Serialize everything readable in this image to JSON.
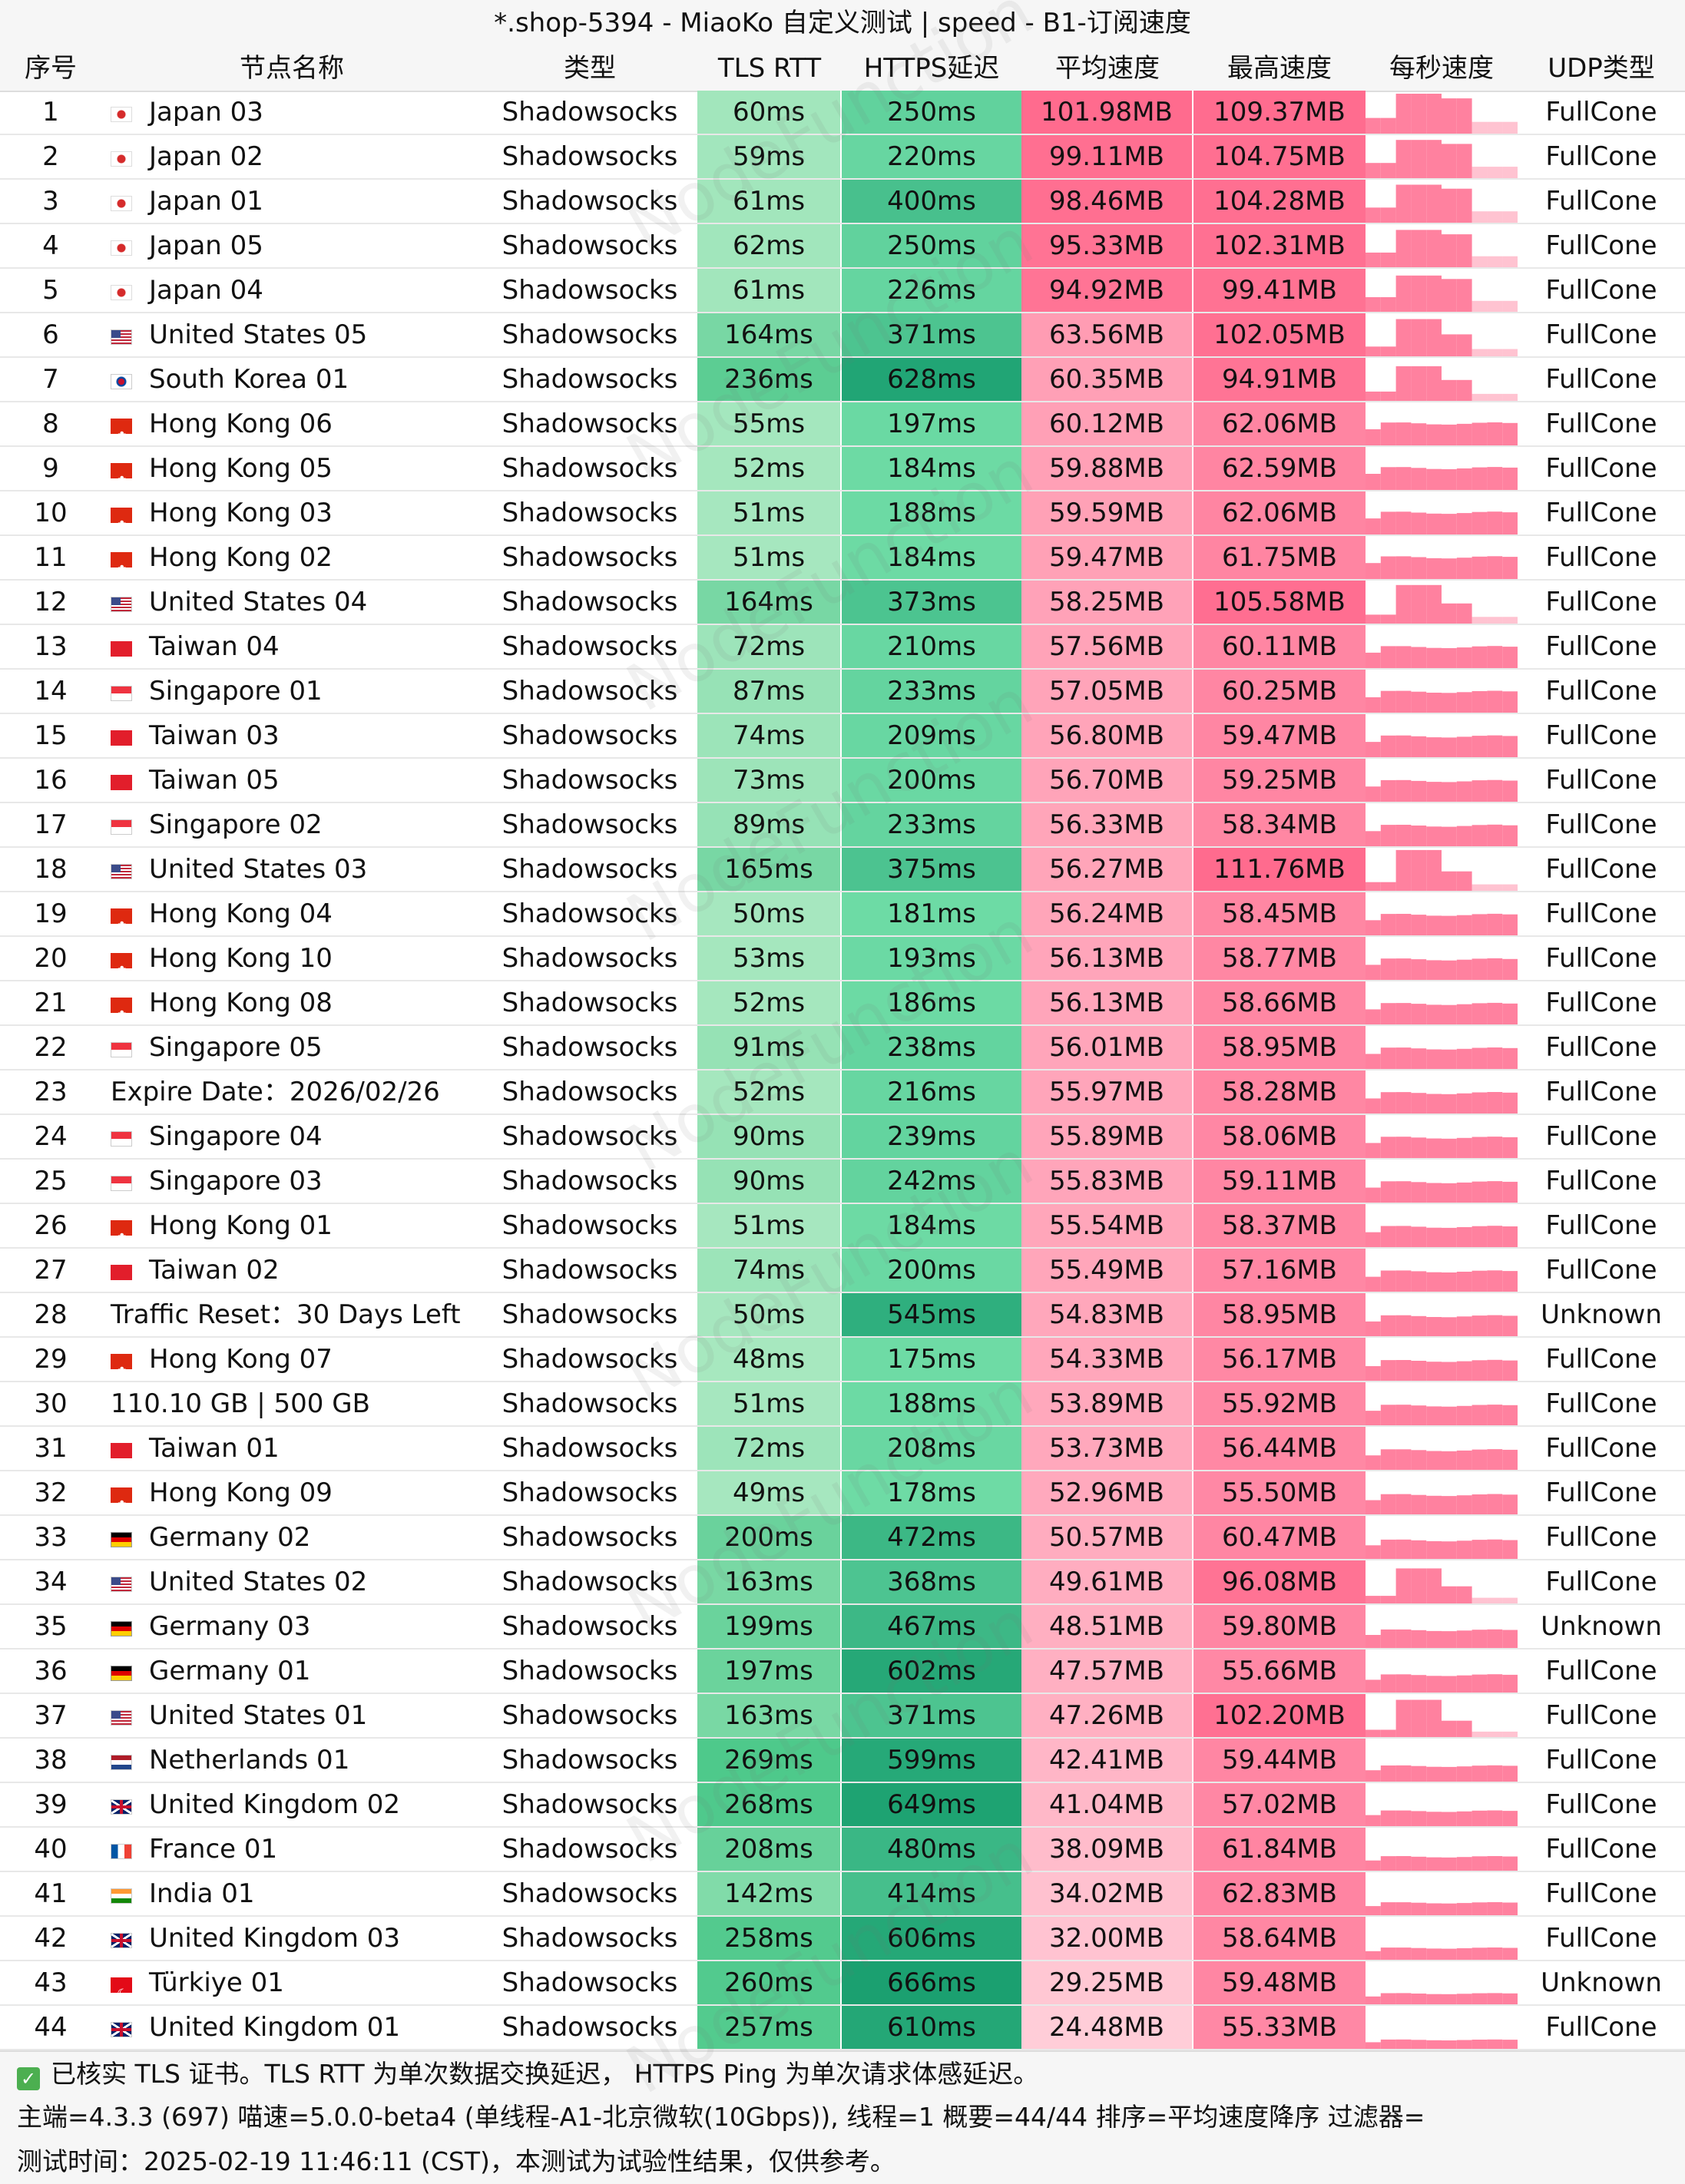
{
  "title": "*.shop-5394 - MiaoKo 自定义测试 | speed - B1-订阅速度",
  "watermark": "NodeFunction",
  "headers": [
    "序号",
    "节点名称",
    "类型",
    "TLS RTT",
    "HTTPS延迟",
    "平均速度",
    "最高速度",
    "每秒速度",
    "UDP类型"
  ],
  "rows": [
    {
      "id": "1",
      "flag": "jp",
      "name": "Japan 03",
      "type": "Shadowsocks",
      "tls": "60ms",
      "https": "250ms",
      "avg": "101.98MB",
      "max": "109.37MB",
      "udp": "FullCone"
    },
    {
      "id": "2",
      "flag": "jp",
      "name": "Japan 02",
      "type": "Shadowsocks",
      "tls": "59ms",
      "https": "220ms",
      "avg": "99.11MB",
      "max": "104.75MB",
      "udp": "FullCone"
    },
    {
      "id": "3",
      "flag": "jp",
      "name": "Japan 01",
      "type": "Shadowsocks",
      "tls": "61ms",
      "https": "400ms",
      "avg": "98.46MB",
      "max": "104.28MB",
      "udp": "FullCone"
    },
    {
      "id": "4",
      "flag": "jp",
      "name": "Japan 05",
      "type": "Shadowsocks",
      "tls": "62ms",
      "https": "250ms",
      "avg": "95.33MB",
      "max": "102.31MB",
      "udp": "FullCone"
    },
    {
      "id": "5",
      "flag": "jp",
      "name": "Japan 04",
      "type": "Shadowsocks",
      "tls": "61ms",
      "https": "226ms",
      "avg": "94.92MB",
      "max": "99.41MB",
      "udp": "FullCone"
    },
    {
      "id": "6",
      "flag": "us",
      "name": "United States 05",
      "type": "Shadowsocks",
      "tls": "164ms",
      "https": "371ms",
      "avg": "63.56MB",
      "max": "102.05MB",
      "udp": "FullCone"
    },
    {
      "id": "7",
      "flag": "kr",
      "name": "South Korea 01",
      "type": "Shadowsocks",
      "tls": "236ms",
      "https": "628ms",
      "avg": "60.35MB",
      "max": "94.91MB",
      "udp": "FullCone"
    },
    {
      "id": "8",
      "flag": "hk",
      "name": "Hong Kong 06",
      "type": "Shadowsocks",
      "tls": "55ms",
      "https": "197ms",
      "avg": "60.12MB",
      "max": "62.06MB",
      "udp": "FullCone"
    },
    {
      "id": "9",
      "flag": "hk",
      "name": "Hong Kong 05",
      "type": "Shadowsocks",
      "tls": "52ms",
      "https": "184ms",
      "avg": "59.88MB",
      "max": "62.59MB",
      "udp": "FullCone"
    },
    {
      "id": "10",
      "flag": "hk",
      "name": "Hong Kong 03",
      "type": "Shadowsocks",
      "tls": "51ms",
      "https": "188ms",
      "avg": "59.59MB",
      "max": "62.06MB",
      "udp": "FullCone"
    },
    {
      "id": "11",
      "flag": "hk",
      "name": "Hong Kong 02",
      "type": "Shadowsocks",
      "tls": "51ms",
      "https": "184ms",
      "avg": "59.47MB",
      "max": "61.75MB",
      "udp": "FullCone"
    },
    {
      "id": "12",
      "flag": "us",
      "name": "United States 04",
      "type": "Shadowsocks",
      "tls": "164ms",
      "https": "373ms",
      "avg": "58.25MB",
      "max": "105.58MB",
      "udp": "FullCone"
    },
    {
      "id": "13",
      "flag": "tw",
      "name": "Taiwan 04",
      "type": "Shadowsocks",
      "tls": "72ms",
      "https": "210ms",
      "avg": "57.56MB",
      "max": "60.11MB",
      "udp": "FullCone"
    },
    {
      "id": "14",
      "flag": "sg",
      "name": "Singapore 01",
      "type": "Shadowsocks",
      "tls": "87ms",
      "https": "233ms",
      "avg": "57.05MB",
      "max": "60.25MB",
      "udp": "FullCone"
    },
    {
      "id": "15",
      "flag": "tw",
      "name": "Taiwan 03",
      "type": "Shadowsocks",
      "tls": "74ms",
      "https": "209ms",
      "avg": "56.80MB",
      "max": "59.47MB",
      "udp": "FullCone"
    },
    {
      "id": "16",
      "flag": "tw",
      "name": "Taiwan 05",
      "type": "Shadowsocks",
      "tls": "73ms",
      "https": "200ms",
      "avg": "56.70MB",
      "max": "59.25MB",
      "udp": "FullCone"
    },
    {
      "id": "17",
      "flag": "sg",
      "name": "Singapore 02",
      "type": "Shadowsocks",
      "tls": "89ms",
      "https": "233ms",
      "avg": "56.33MB",
      "max": "58.34MB",
      "udp": "FullCone"
    },
    {
      "id": "18",
      "flag": "us",
      "name": "United States 03",
      "type": "Shadowsocks",
      "tls": "165ms",
      "https": "375ms",
      "avg": "56.27MB",
      "max": "111.76MB",
      "udp": "FullCone"
    },
    {
      "id": "19",
      "flag": "hk",
      "name": "Hong Kong 04",
      "type": "Shadowsocks",
      "tls": "50ms",
      "https": "181ms",
      "avg": "56.24MB",
      "max": "58.45MB",
      "udp": "FullCone"
    },
    {
      "id": "20",
      "flag": "hk",
      "name": "Hong Kong 10",
      "type": "Shadowsocks",
      "tls": "53ms",
      "https": "193ms",
      "avg": "56.13MB",
      "max": "58.77MB",
      "udp": "FullCone"
    },
    {
      "id": "21",
      "flag": "hk",
      "name": "Hong Kong 08",
      "type": "Shadowsocks",
      "tls": "52ms",
      "https": "186ms",
      "avg": "56.13MB",
      "max": "58.66MB",
      "udp": "FullCone"
    },
    {
      "id": "22",
      "flag": "sg",
      "name": "Singapore 05",
      "type": "Shadowsocks",
      "tls": "91ms",
      "https": "238ms",
      "avg": "56.01MB",
      "max": "58.95MB",
      "udp": "FullCone"
    },
    {
      "id": "23",
      "flag": "",
      "name": "Expire Date：2026/02/26",
      "type": "Shadowsocks",
      "tls": "52ms",
      "https": "216ms",
      "avg": "55.97MB",
      "max": "58.28MB",
      "udp": "FullCone"
    },
    {
      "id": "24",
      "flag": "sg",
      "name": "Singapore 04",
      "type": "Shadowsocks",
      "tls": "90ms",
      "https": "239ms",
      "avg": "55.89MB",
      "max": "58.06MB",
      "udp": "FullCone"
    },
    {
      "id": "25",
      "flag": "sg",
      "name": "Singapore 03",
      "type": "Shadowsocks",
      "tls": "90ms",
      "https": "242ms",
      "avg": "55.83MB",
      "max": "59.11MB",
      "udp": "FullCone"
    },
    {
      "id": "26",
      "flag": "hk",
      "name": "Hong Kong 01",
      "type": "Shadowsocks",
      "tls": "51ms",
      "https": "184ms",
      "avg": "55.54MB",
      "max": "58.37MB",
      "udp": "FullCone"
    },
    {
      "id": "27",
      "flag": "tw",
      "name": "Taiwan 02",
      "type": "Shadowsocks",
      "tls": "74ms",
      "https": "200ms",
      "avg": "55.49MB",
      "max": "57.16MB",
      "udp": "FullCone"
    },
    {
      "id": "28",
      "flag": "",
      "name": "Traffic Reset：30 Days Left",
      "type": "Shadowsocks",
      "tls": "50ms",
      "https": "545ms",
      "avg": "54.83MB",
      "max": "58.95MB",
      "udp": "Unknown"
    },
    {
      "id": "29",
      "flag": "hk",
      "name": "Hong Kong 07",
      "type": "Shadowsocks",
      "tls": "48ms",
      "https": "175ms",
      "avg": "54.33MB",
      "max": "56.17MB",
      "udp": "FullCone"
    },
    {
      "id": "30",
      "flag": "",
      "name": "110.10 GB | 500 GB",
      "type": "Shadowsocks",
      "tls": "51ms",
      "https": "188ms",
      "avg": "53.89MB",
      "max": "55.92MB",
      "udp": "FullCone"
    },
    {
      "id": "31",
      "flag": "tw",
      "name": "Taiwan 01",
      "type": "Shadowsocks",
      "tls": "72ms",
      "https": "208ms",
      "avg": "53.73MB",
      "max": "56.44MB",
      "udp": "FullCone"
    },
    {
      "id": "32",
      "flag": "hk",
      "name": "Hong Kong 09",
      "type": "Shadowsocks",
      "tls": "49ms",
      "https": "178ms",
      "avg": "52.96MB",
      "max": "55.50MB",
      "udp": "FullCone"
    },
    {
      "id": "33",
      "flag": "de",
      "name": "Germany 02",
      "type": "Shadowsocks",
      "tls": "200ms",
      "https": "472ms",
      "avg": "50.57MB",
      "max": "60.47MB",
      "udp": "FullCone"
    },
    {
      "id": "34",
      "flag": "us",
      "name": "United States 02",
      "type": "Shadowsocks",
      "tls": "163ms",
      "https": "368ms",
      "avg": "49.61MB",
      "max": "96.08MB",
      "udp": "FullCone"
    },
    {
      "id": "35",
      "flag": "de",
      "name": "Germany 03",
      "type": "Shadowsocks",
      "tls": "199ms",
      "https": "467ms",
      "avg": "48.51MB",
      "max": "59.80MB",
      "udp": "Unknown"
    },
    {
      "id": "36",
      "flag": "de",
      "name": "Germany 01",
      "type": "Shadowsocks",
      "tls": "197ms",
      "https": "602ms",
      "avg": "47.57MB",
      "max": "55.66MB",
      "udp": "FullCone"
    },
    {
      "id": "37",
      "flag": "us",
      "name": "United States 01",
      "type": "Shadowsocks",
      "tls": "163ms",
      "https": "371ms",
      "avg": "47.26MB",
      "max": "102.20MB",
      "udp": "FullCone"
    },
    {
      "id": "38",
      "flag": "nl",
      "name": "Netherlands 01",
      "type": "Shadowsocks",
      "tls": "269ms",
      "https": "599ms",
      "avg": "42.41MB",
      "max": "59.44MB",
      "udp": "FullCone"
    },
    {
      "id": "39",
      "flag": "gb",
      "name": "United Kingdom 02",
      "type": "Shadowsocks",
      "tls": "268ms",
      "https": "649ms",
      "avg": "41.04MB",
      "max": "57.02MB",
      "udp": "FullCone"
    },
    {
      "id": "40",
      "flag": "fr",
      "name": "France 01",
      "type": "Shadowsocks",
      "tls": "208ms",
      "https": "480ms",
      "avg": "38.09MB",
      "max": "61.84MB",
      "udp": "FullCone"
    },
    {
      "id": "41",
      "flag": "in",
      "name": "India 01",
      "type": "Shadowsocks",
      "tls": "142ms",
      "https": "414ms",
      "avg": "34.02MB",
      "max": "62.83MB",
      "udp": "FullCone"
    },
    {
      "id": "42",
      "flag": "gb",
      "name": "United Kingdom 03",
      "type": "Shadowsocks",
      "tls": "258ms",
      "https": "606ms",
      "avg": "32.00MB",
      "max": "58.64MB",
      "udp": "FullCone"
    },
    {
      "id": "43",
      "flag": "tr",
      "name": "Türkiye 01",
      "type": "Shadowsocks",
      "tls": "260ms",
      "https": "666ms",
      "avg": "29.25MB",
      "max": "59.48MB",
      "udp": "Unknown"
    },
    {
      "id": "44",
      "flag": "gb",
      "name": "United Kingdom 01",
      "type": "Shadowsocks",
      "tls": "257ms",
      "https": "610ms",
      "avg": "24.48MB",
      "max": "55.33MB",
      "udp": "FullCone"
    }
  ],
  "footer": {
    "line1": "已核实 TLS 证书。TLS RTT 为单次数据交换延迟， HTTPS Ping 为单次请求体感延迟。",
    "line2": "主端=4.3.3 (697) 喵速=5.0.0-beta4 (单线程-A1-北京微软(10Gbps)), 线程=1 概要=44/44 排序=平均速度降序 过滤器=",
    "line3": "测试时间：2025-02-19 11:46:11 (CST)，本测试为试验性结果，仅供参考。"
  },
  "colors": {
    "tls_light": "#a8e8c0",
    "tls_dark": "#4cc88a",
    "https_light": "#6fdca6",
    "https_dark": "#1aa070",
    "speed_high": "#ff6b8e",
    "speed_low": "#ffd0da",
    "spark": "#ff7a9a"
  }
}
